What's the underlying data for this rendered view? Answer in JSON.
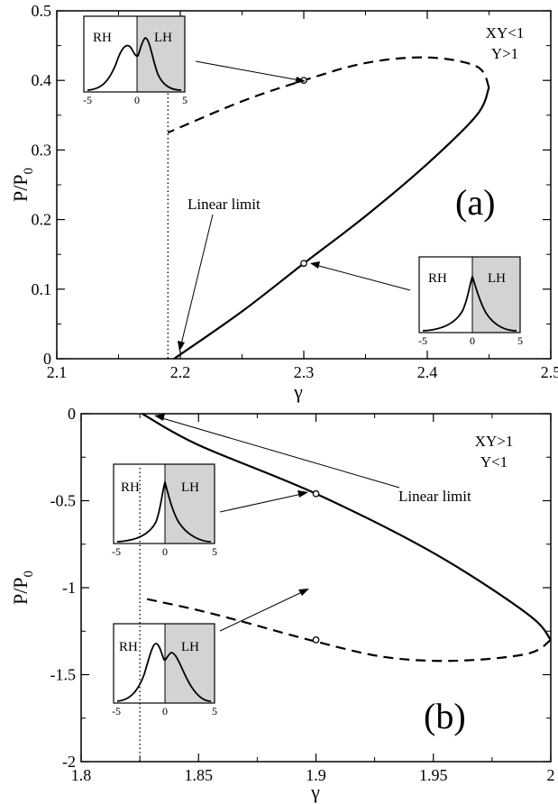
{
  "chart_data": [
    {
      "type": "line",
      "panel_label": "(a)",
      "annotation": [
        "XY<1",
        "Y>1"
      ],
      "xlabel": "γ",
      "ylabel": "P/P",
      "ylabel_sub": "0",
      "xlim": [
        2.1,
        2.5
      ],
      "ylim": [
        0,
        0.5
      ],
      "xticks": [
        2.1,
        2.2,
        2.3,
        2.4,
        2.5
      ],
      "xtick_labels": [
        "2.1",
        "2.2",
        "2.3",
        "2.4",
        "2.5"
      ],
      "yticks": [
        0,
        0.1,
        0.2,
        0.3,
        0.4,
        0.5
      ],
      "ytick_labels": [
        "0",
        "0.1",
        "0.2",
        "0.3",
        "0.4",
        "0.5"
      ],
      "linear_limit_x": 2.19,
      "linear_limit_label": "Linear limit",
      "series": [
        {
          "style": "solid",
          "x": [
            2.195,
            2.25,
            2.3,
            2.35,
            2.4,
            2.44,
            2.45
          ],
          "y": [
            0.0,
            0.068,
            0.137,
            0.205,
            0.28,
            0.35,
            0.39
          ]
        },
        {
          "style": "dashed",
          "x": [
            2.45,
            2.44,
            2.4,
            2.35,
            2.3,
            2.25,
            2.19
          ],
          "y": [
            0.39,
            0.42,
            0.433,
            0.425,
            0.4,
            0.37,
            0.325
          ]
        }
      ],
      "markers": [
        {
          "x": 2.3,
          "y": 0.4
        },
        {
          "x": 2.3,
          "y": 0.137
        }
      ],
      "insets": [
        {
          "shape": "two-peak",
          "left_label": "RH",
          "right_label": "LH",
          "ticks": [
            "-5",
            "0",
            "5"
          ]
        },
        {
          "shape": "single-peak",
          "left_label": "RH",
          "right_label": "LH",
          "ticks": [
            "-5",
            "0",
            "5"
          ]
        }
      ]
    },
    {
      "type": "line",
      "panel_label": "(b)",
      "annotation": [
        "XY>1",
        "Y<1"
      ],
      "xlabel": "γ",
      "ylabel": "P/P",
      "ylabel_sub": "0",
      "xlim": [
        1.8,
        2.0
      ],
      "ylim": [
        -2,
        0
      ],
      "xticks": [
        1.8,
        1.85,
        1.9,
        1.95,
        2.0
      ],
      "xtick_labels": [
        "1.8",
        "1.85",
        "1.9",
        "1.95",
        "2"
      ],
      "yticks": [
        -2,
        -1.5,
        -1,
        -0.5,
        0
      ],
      "ytick_labels": [
        "-2",
        "-1.5",
        "-1",
        "-0.5",
        "0"
      ],
      "linear_limit_x": 1.825,
      "linear_limit_label": "Linear limit",
      "series": [
        {
          "style": "solid",
          "x": [
            1.826,
            1.85,
            1.9,
            1.95,
            1.99,
            2.0
          ],
          "y": [
            0.0,
            -0.18,
            -0.46,
            -0.8,
            -1.15,
            -1.3
          ]
        },
        {
          "style": "dashed",
          "x": [
            2.0,
            1.99,
            1.96,
            1.93,
            1.9,
            1.87,
            1.85,
            1.826
          ],
          "y": [
            -1.3,
            -1.38,
            -1.42,
            -1.4,
            -1.31,
            -1.2,
            -1.13,
            -1.06
          ]
        }
      ],
      "markers": [
        {
          "x": 1.9,
          "y": -0.46
        },
        {
          "x": 1.9,
          "y": -1.3
        }
      ],
      "insets": [
        {
          "shape": "single-peak",
          "left_label": "RH",
          "right_label": "LH",
          "ticks": [
            "-5",
            "0",
            "5"
          ]
        },
        {
          "shape": "two-peak",
          "left_label": "RH",
          "right_label": "LH",
          "ticks": [
            "-5",
            "0",
            "5"
          ]
        }
      ]
    }
  ]
}
